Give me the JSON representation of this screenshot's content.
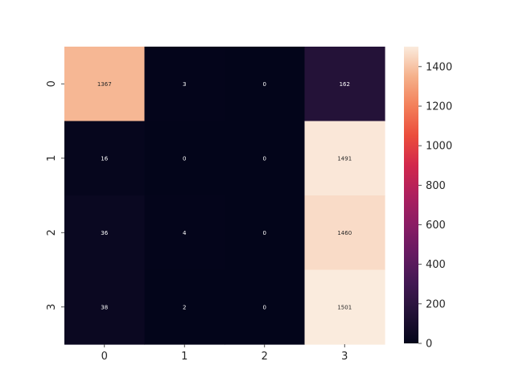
{
  "chart_data": {
    "type": "heatmap",
    "title": "",
    "xlabel": "",
    "ylabel": "",
    "x_categories": [
      "0",
      "1",
      "2",
      "3"
    ],
    "y_categories": [
      "0",
      "1",
      "2",
      "3"
    ],
    "values": [
      [
        1367,
        3,
        0,
        162
      ],
      [
        16,
        0,
        0,
        1491
      ],
      [
        36,
        4,
        0,
        1460
      ],
      [
        38,
        2,
        0,
        1501
      ]
    ],
    "cell_labels": [
      [
        "1367",
        "3",
        "0",
        "162"
      ],
      [
        "16",
        "0",
        "0",
        "1491"
      ],
      [
        "36",
        "4",
        "0",
        "1460"
      ],
      [
        "38",
        "2",
        "0",
        "1501"
      ]
    ],
    "colormap": "rocket",
    "color_range": [
      0,
      1501
    ],
    "colorbar": {
      "ticks": [
        0,
        200,
        400,
        600,
        800,
        1000,
        1200,
        1400
      ],
      "tick_labels": [
        "0",
        "200",
        "400",
        "600",
        "800",
        "1000",
        "1200",
        "1400"
      ]
    },
    "grid": false,
    "legend": "colorbar-right"
  }
}
